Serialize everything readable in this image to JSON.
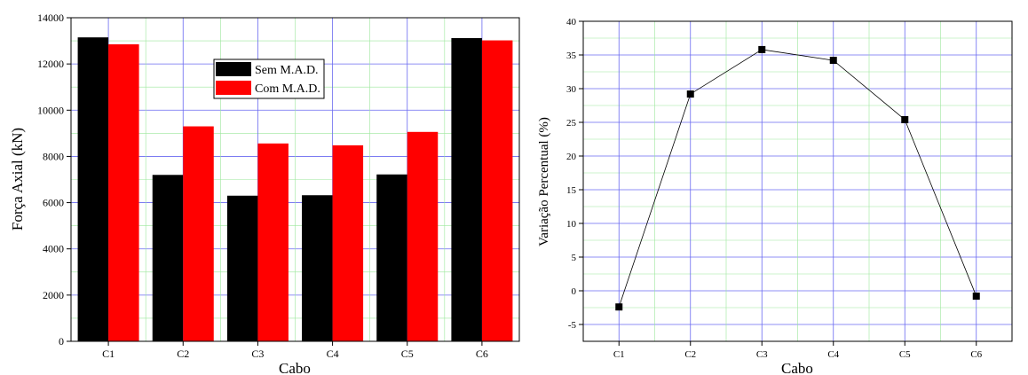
{
  "chart_data": [
    {
      "type": "bar",
      "title": "",
      "xlabel": "Cabo",
      "ylabel": "Força Axial (kN)",
      "categories": [
        "C1",
        "C2",
        "C3",
        "C4",
        "C5",
        "C6"
      ],
      "series": [
        {
          "name": "Sem M.A.D.",
          "color": "#000000",
          "values": [
            13150,
            7200,
            6300,
            6320,
            7220,
            13120
          ]
        },
        {
          "name": "Com M.A.D.",
          "color": "#ff0000",
          "values": [
            12850,
            9300,
            8560,
            8480,
            9060,
            13020
          ]
        }
      ],
      "ylim": [
        0,
        14000
      ],
      "yticks": [
        0,
        2000,
        4000,
        6000,
        8000,
        10000,
        12000,
        14000
      ],
      "grid": true,
      "legend_position": "top-center"
    },
    {
      "type": "line",
      "title": "",
      "xlabel": "Cabo",
      "ylabel": "Variação Percentual (%)",
      "categories": [
        "C1",
        "C2",
        "C3",
        "C4",
        "C5",
        "C6"
      ],
      "series": [
        {
          "color": "#000000",
          "values": [
            -2.4,
            29.2,
            35.8,
            34.2,
            25.4,
            -0.8
          ]
        }
      ],
      "ylim": [
        -7.5,
        40
      ],
      "yticks": [
        -5,
        0,
        5,
        10,
        15,
        20,
        25,
        30,
        35,
        40
      ],
      "grid": true,
      "markers": "square"
    }
  ]
}
